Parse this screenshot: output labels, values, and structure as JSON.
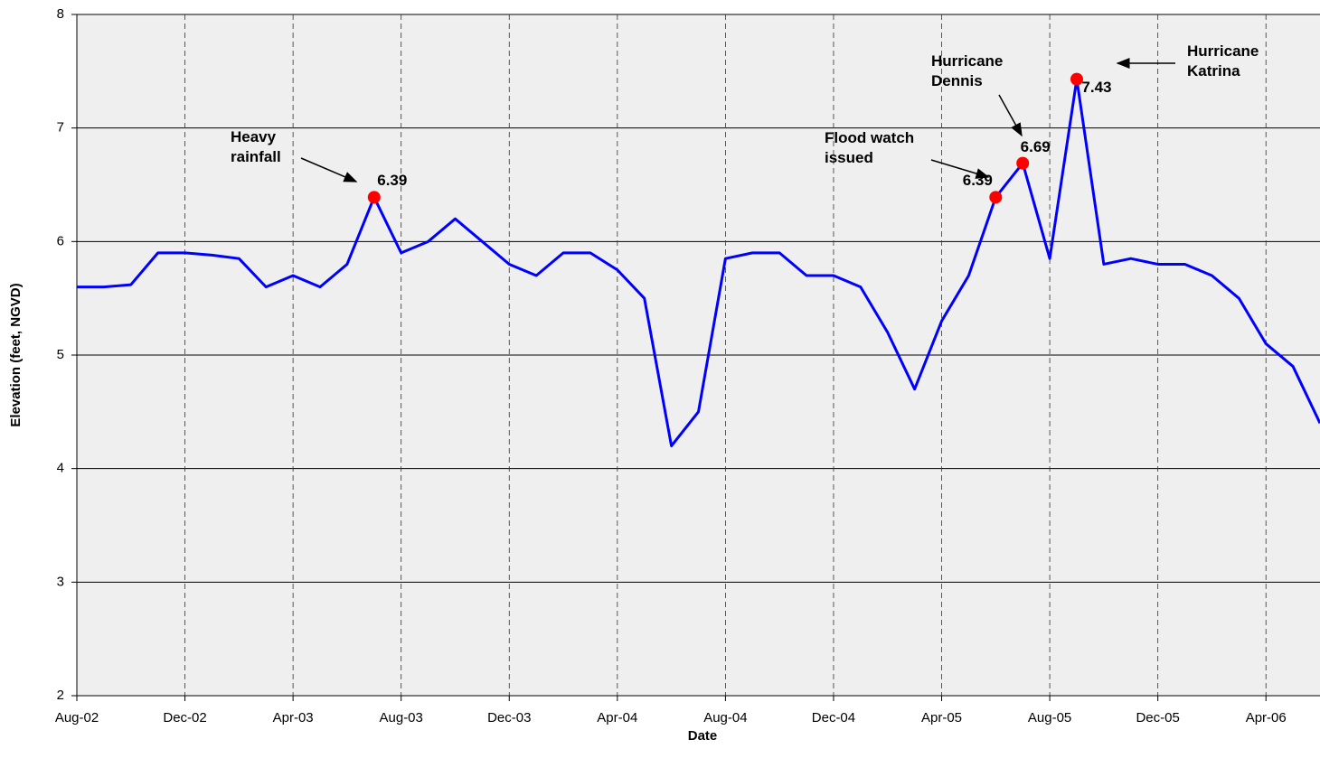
{
  "chart_data": {
    "type": "line",
    "x_label": "Date",
    "y_label": "Elevation (feet, NGVD)",
    "x": [
      "2002-08",
      "2002-09",
      "2002-10",
      "2002-11",
      "2002-12",
      "2003-01",
      "2003-02",
      "2003-03",
      "2003-04",
      "2003-05",
      "2003-06",
      "2003-07",
      "2003-08",
      "2003-09",
      "2003-10",
      "2003-11",
      "2003-12",
      "2004-01",
      "2004-02",
      "2004-03",
      "2004-04",
      "2004-05",
      "2004-06",
      "2004-07",
      "2004-08",
      "2004-09",
      "2004-10",
      "2004-11",
      "2004-12",
      "2005-01",
      "2005-02",
      "2005-03",
      "2005-04",
      "2005-05",
      "2005-06",
      "2005-07",
      "2005-08",
      "2005-09",
      "2005-10",
      "2005-11",
      "2005-12",
      "2006-01",
      "2006-02",
      "2006-03",
      "2006-04",
      "2006-05",
      "2006-06"
    ],
    "series": [
      {
        "color": "#0000ff",
        "values": [
          5.6,
          5.6,
          5.62,
          5.9,
          5.9,
          5.88,
          5.85,
          5.6,
          5.7,
          5.6,
          5.8,
          6.39,
          5.9,
          6.0,
          6.2,
          6.0,
          5.8,
          5.7,
          5.9,
          5.9,
          5.75,
          5.5,
          4.2,
          4.5,
          5.85,
          5.9,
          5.9,
          5.7,
          5.7,
          5.6,
          5.2,
          4.7,
          5.3,
          5.7,
          6.39,
          6.69,
          5.85,
          7.43,
          5.8,
          5.85,
          5.8,
          5.8,
          5.7,
          5.5,
          5.1,
          4.9,
          4.4
        ]
      }
    ],
    "highlights": {
      "color": "#ff0000",
      "x": [
        "2003-07",
        "2005-06",
        "2005-07",
        "2005-09"
      ],
      "values": [
        6.39,
        6.39,
        6.69,
        7.43
      ]
    },
    "annotations": [
      "Heavy rainfall",
      "Flood watch issued",
      "Hurricane Dennis",
      "Hurricane Katrina"
    ],
    "xlim": [
      "2002-08",
      "2006-06"
    ],
    "xticks": [
      {
        "value": "2002-08",
        "label": "Aug-02"
      },
      {
        "value": "2002-12",
        "label": "Dec-02"
      },
      {
        "value": "2003-04",
        "label": "Apr-03"
      },
      {
        "value": "2003-08",
        "label": "Aug-03"
      },
      {
        "value": "2003-12",
        "label": "Dec-03"
      },
      {
        "value": "2004-04",
        "label": "Apr-04"
      },
      {
        "value": "2004-08",
        "label": "Aug-04"
      },
      {
        "value": "2004-12",
        "label": "Dec-04"
      },
      {
        "value": "2005-04",
        "label": "Apr-05"
      },
      {
        "value": "2005-08",
        "label": "Aug-05"
      },
      {
        "value": "2005-12",
        "label": "Dec-05"
      },
      {
        "value": "2006-04",
        "label": "Apr-06"
      }
    ],
    "ylim": [
      2,
      8
    ],
    "yticks": [
      2,
      3,
      4,
      5,
      6,
      7,
      8
    ],
    "grid": true
  }
}
